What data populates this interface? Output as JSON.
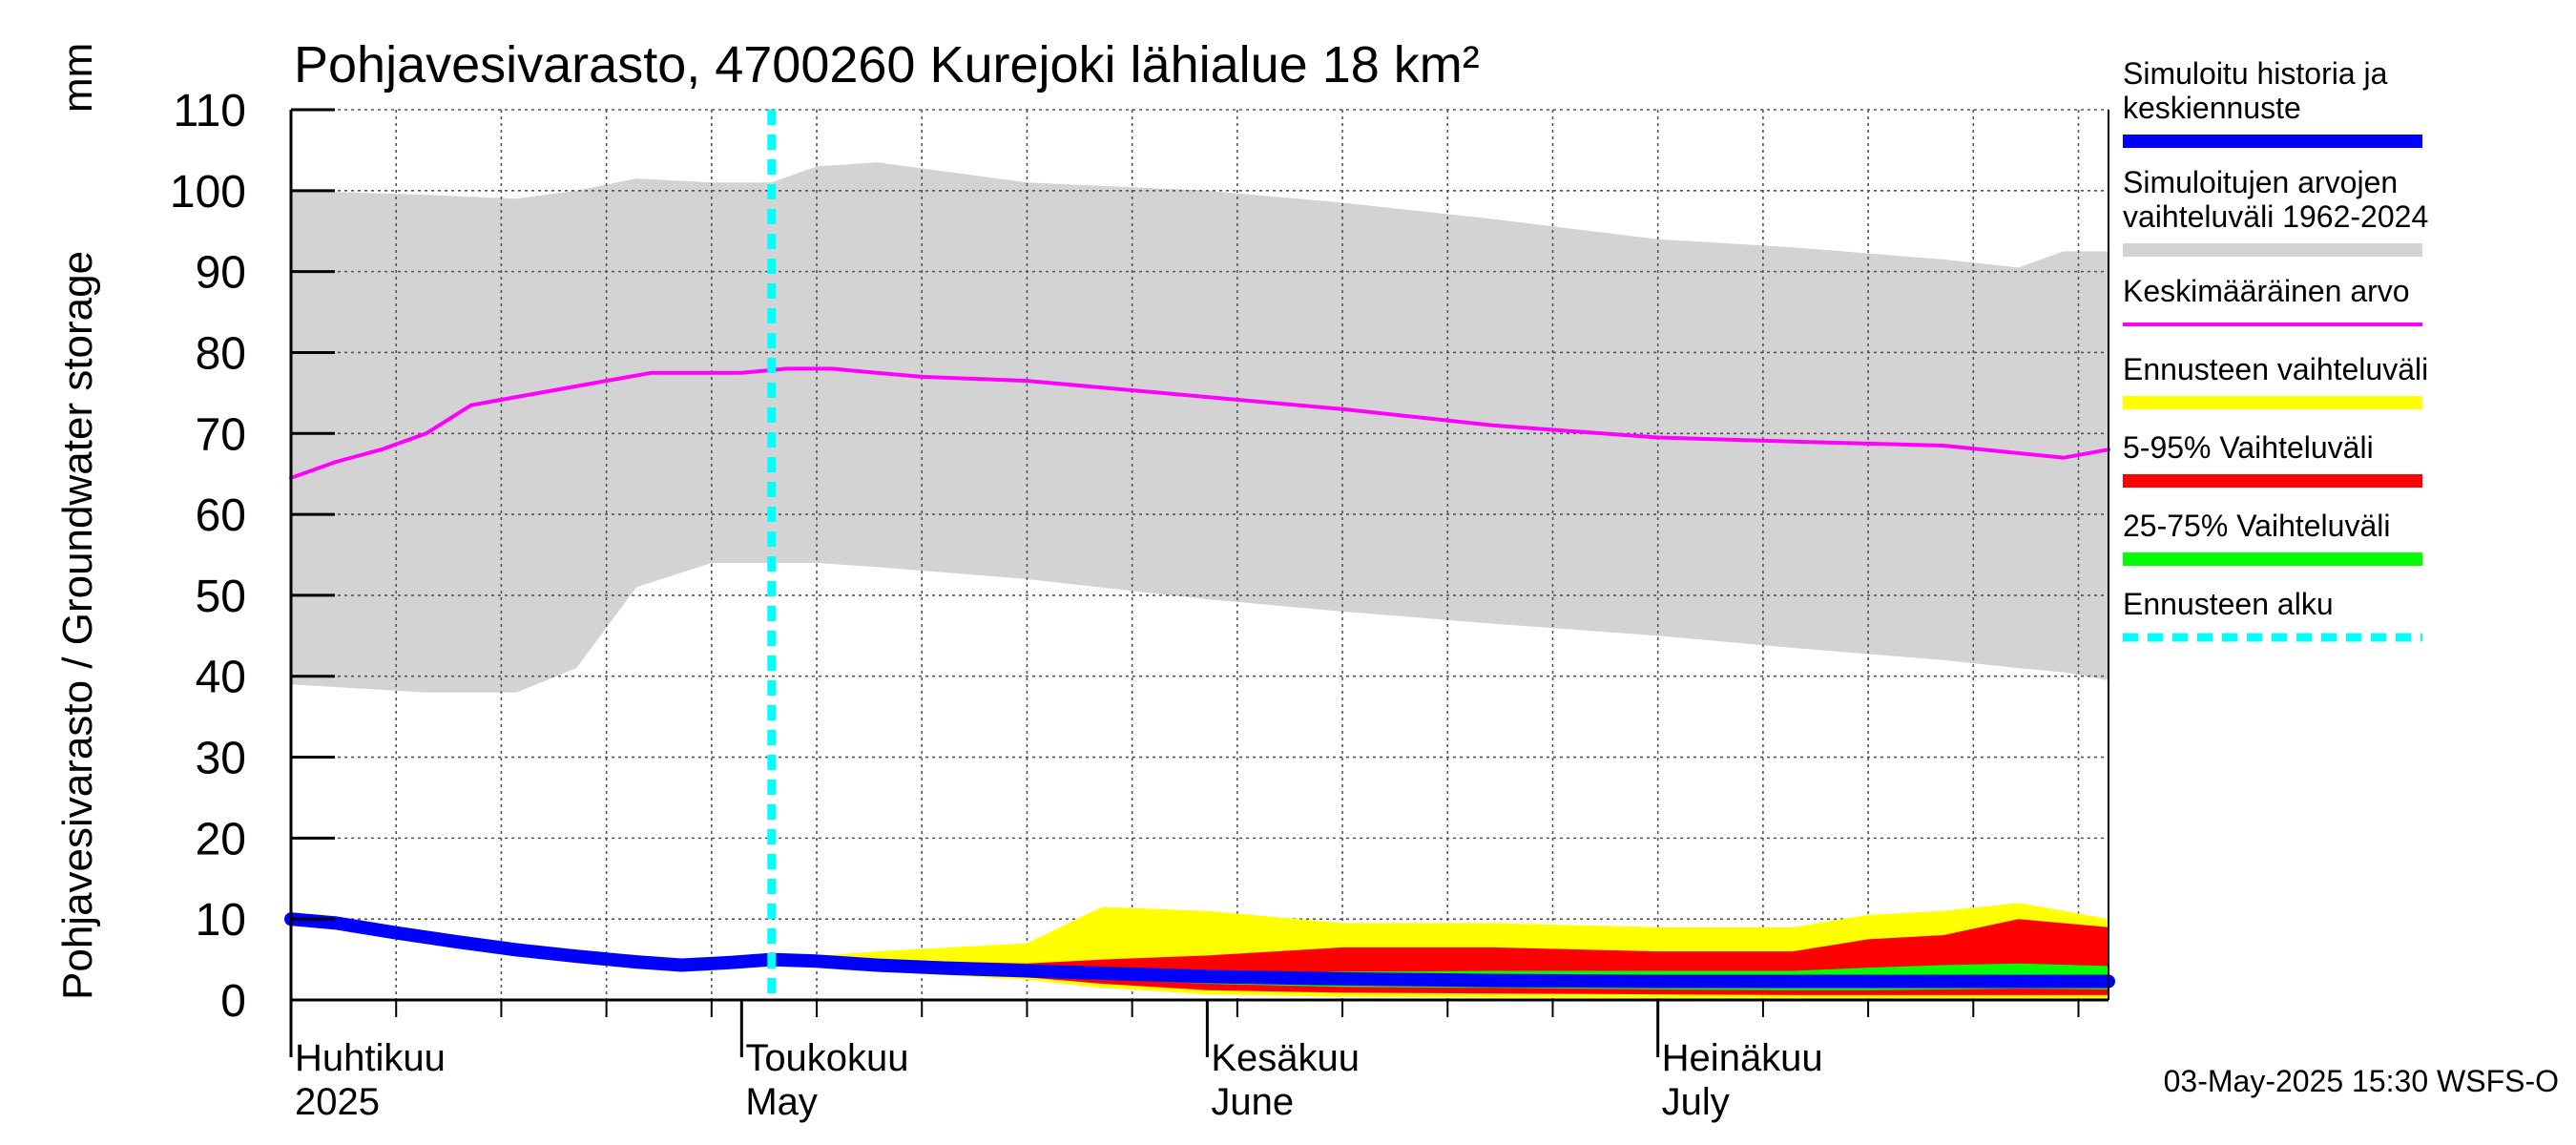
{
  "chart_data": {
    "type": "area",
    "title": "Pohjavesivarasto, 4700260 Kurejoki lähialue 18 km²",
    "ylabel": "Pohjavesivarasto / Groundwater storage",
    "yunit": "mm",
    "ylim": [
      0,
      110
    ],
    "yticks": [
      0,
      10,
      20,
      30,
      40,
      50,
      60,
      70,
      80,
      90,
      100,
      110
    ],
    "xlim": [
      "2025-04-01",
      "2025-07-31"
    ],
    "grid": true,
    "legend_placement": "right",
    "month_labels": [
      {
        "date": "2025-04-01",
        "fi": "Huhtikuu",
        "en": "2025"
      },
      {
        "date": "2025-05-01",
        "fi": "Toukokuu",
        "en": "May"
      },
      {
        "date": "2025-06-01",
        "fi": "Kesäkuu",
        "en": "June"
      },
      {
        "date": "2025-07-01",
        "fi": "Heinäkuu",
        "en": "July"
      }
    ],
    "forecast_start": "2025-05-03",
    "footer": "03-May-2025 15:30 WSFS-O",
    "legend": [
      {
        "label": "Simuloitu historia ja keskiennuste",
        "lines": [
          "Simuloitu historia ja",
          "keskiennuste"
        ],
        "color": "#0000ff",
        "style": "solid"
      },
      {
        "label": "Simuloitujen arvojen vaihteluväli 1962-2024",
        "lines": [
          "Simuloitujen arvojen",
          "vaihteluväli 1962-2024"
        ],
        "color": "#d3d3d3",
        "style": "solid"
      },
      {
        "label": "Keskimääräinen arvo",
        "lines": [
          "Keskimääräinen arvo"
        ],
        "color": "#ff00ff",
        "style": "solid"
      },
      {
        "label": "Ennusteen vaihteluväli",
        "lines": [
          "Ennusteen vaihteluväli"
        ],
        "color": "#ffff00",
        "style": "solid"
      },
      {
        "label": "5-95% Vaihteluväli",
        "lines": [
          "5-95% Vaihteluväli"
        ],
        "color": "#ff0000",
        "style": "solid"
      },
      {
        "label": "25-75% Vaihteluväli",
        "lines": [
          "25-75% Vaihteluväli"
        ],
        "color": "#00ff00",
        "style": "solid"
      },
      {
        "label": "Ennusteen alku",
        "lines": [
          "Ennusteen alku"
        ],
        "color": "#00ffff",
        "style": "dashed"
      }
    ],
    "series": [
      {
        "name": "Simuloitujen arvojen vaihteluväli 1962-2024",
        "kind": "band",
        "x": [
          "2025-04-01",
          "2025-04-10",
          "2025-04-16",
          "2025-04-20",
          "2025-04-24",
          "2025-04-29",
          "2025-05-03",
          "2025-05-06",
          "2025-05-10",
          "2025-05-20",
          "2025-06-01",
          "2025-06-10",
          "2025-06-20",
          "2025-07-01",
          "2025-07-10",
          "2025-07-20",
          "2025-07-25",
          "2025-07-28",
          "2025-07-31"
        ],
        "low": [
          39,
          38,
          38,
          41,
          51,
          54,
          54,
          54,
          53.5,
          52,
          49.5,
          48,
          46.5,
          45,
          43.5,
          42,
          41,
          40.5,
          39.5
        ],
        "high": [
          100,
          99.5,
          99,
          100,
          101.5,
          101,
          101,
          103,
          103.5,
          101,
          100,
          98.5,
          96.5,
          94,
          93,
          91.5,
          90.5,
          92.5,
          92.5
        ]
      },
      {
        "name": "Keskimääräinen arvo",
        "kind": "line",
        "x": [
          "2025-04-01",
          "2025-04-04",
          "2025-04-07",
          "2025-04-10",
          "2025-04-13",
          "2025-04-16",
          "2025-04-19",
          "2025-04-22",
          "2025-04-25",
          "2025-04-28",
          "2025-05-01",
          "2025-05-04",
          "2025-05-07",
          "2025-05-10",
          "2025-05-13",
          "2025-05-20",
          "2025-06-01",
          "2025-06-10",
          "2025-06-20",
          "2025-07-01",
          "2025-07-10",
          "2025-07-20",
          "2025-07-28",
          "2025-07-31"
        ],
        "y": [
          64.5,
          66.5,
          68,
          70,
          73.5,
          74.5,
          75.5,
          76.5,
          77.5,
          77.5,
          77.5,
          78,
          78,
          77.5,
          77,
          76.5,
          74.5,
          73,
          71,
          69.5,
          69,
          68.5,
          67,
          68
        ]
      },
      {
        "name": "Ennusteen vaihteluväli",
        "kind": "band",
        "x": [
          "2025-05-03",
          "2025-05-10",
          "2025-05-20",
          "2025-05-25",
          "2025-06-01",
          "2025-06-10",
          "2025-06-20",
          "2025-07-01",
          "2025-07-10",
          "2025-07-15",
          "2025-07-20",
          "2025-07-25",
          "2025-07-31"
        ],
        "low": [
          4.5,
          3.5,
          2.5,
          1.5,
          0.7,
          0.4,
          0.3,
          0.2,
          0.2,
          0.2,
          0.2,
          0.2,
          0.2
        ],
        "high": [
          5,
          6,
          7,
          11.5,
          11,
          9.5,
          9.5,
          9,
          9,
          10.5,
          11,
          12,
          10
        ]
      },
      {
        "name": "5-95% Vaihteluväli",
        "kind": "band",
        "x": [
          "2025-05-03",
          "2025-05-10",
          "2025-05-20",
          "2025-05-25",
          "2025-06-01",
          "2025-06-10",
          "2025-06-20",
          "2025-07-01",
          "2025-07-10",
          "2025-07-15",
          "2025-07-20",
          "2025-07-25",
          "2025-07-31"
        ],
        "low": [
          4.5,
          3.8,
          2.8,
          2,
          1.2,
          0.9,
          0.8,
          0.7,
          0.6,
          0.6,
          0.6,
          0.6,
          0.6
        ],
        "high": [
          5,
          5,
          4.5,
          5,
          5.5,
          6.5,
          6.5,
          6,
          6,
          7.5,
          8,
          10,
          9
        ]
      },
      {
        "name": "25-75% Vaihteluväli",
        "kind": "band",
        "x": [
          "2025-05-03",
          "2025-05-10",
          "2025-05-20",
          "2025-05-25",
          "2025-06-01",
          "2025-06-10",
          "2025-06-20",
          "2025-07-01",
          "2025-07-10",
          "2025-07-15",
          "2025-07-20",
          "2025-07-25",
          "2025-07-31"
        ],
        "low": [
          4.5,
          4,
          3.3,
          2.6,
          2,
          1.6,
          1.5,
          1.3,
          1.2,
          1.2,
          1.3,
          1.4,
          1.3
        ],
        "high": [
          4.7,
          4.3,
          3.8,
          3.5,
          3.3,
          3.5,
          3.6,
          3.6,
          3.6,
          4,
          4.3,
          4.5,
          4.2
        ]
      },
      {
        "name": "Simuloitu historia ja keskiennuste",
        "kind": "line",
        "x": [
          "2025-04-01",
          "2025-04-04",
          "2025-04-08",
          "2025-04-12",
          "2025-04-16",
          "2025-04-20",
          "2025-04-24",
          "2025-04-27",
          "2025-04-30",
          "2025-05-03",
          "2025-05-06",
          "2025-05-10",
          "2025-05-15",
          "2025-05-20",
          "2025-05-25",
          "2025-06-01",
          "2025-06-10",
          "2025-06-20",
          "2025-07-01",
          "2025-07-10",
          "2025-07-20",
          "2025-07-31"
        ],
        "y": [
          10,
          9.5,
          8.3,
          7.2,
          6.2,
          5.4,
          4.7,
          4.3,
          4.6,
          5,
          4.8,
          4.3,
          3.9,
          3.6,
          3.3,
          2.9,
          2.6,
          2.4,
          2.3,
          2.3,
          2.3,
          2.3
        ]
      }
    ]
  }
}
